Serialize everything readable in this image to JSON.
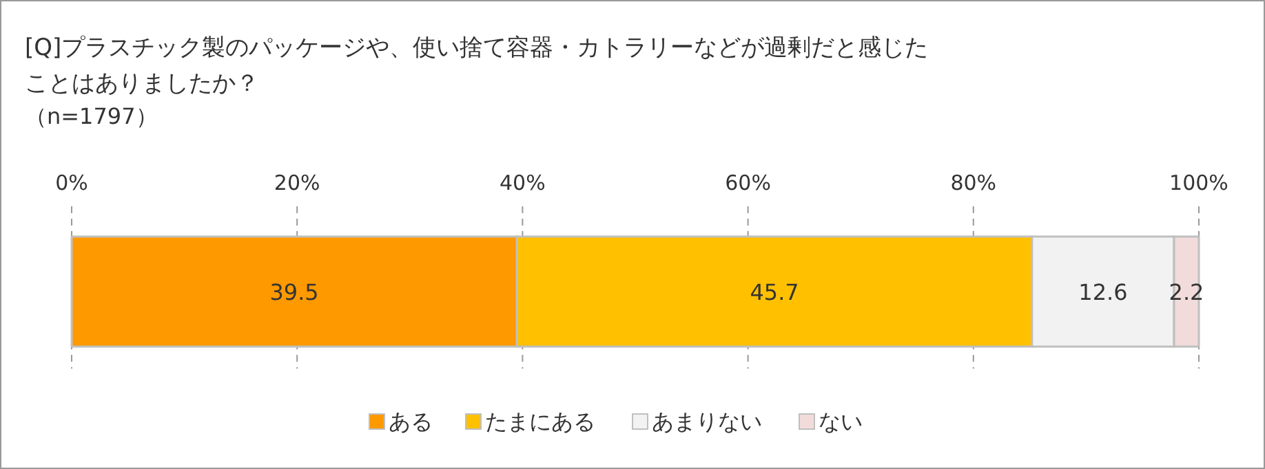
{
  "chart_data": {
    "type": "bar",
    "orientation": "horizontal",
    "stacked": true,
    "title": "[Q]プラスチック製のパッケージや、使い捨て容器・カトラリーなどが過剰だと感じたことはありましたか？",
    "subtitle": "（n=1797）",
    "categories": [
      null
    ],
    "xlim": [
      0,
      100
    ],
    "xticks": [
      {
        "value": 0,
        "label": "0%"
      },
      {
        "value": 20,
        "label": "20%"
      },
      {
        "value": 40,
        "label": "40%"
      },
      {
        "value": 60,
        "label": "60%"
      },
      {
        "value": 80,
        "label": "80%"
      },
      {
        "value": 100,
        "label": "100%"
      }
    ],
    "series": [
      {
        "name": "ある",
        "color": "#ff9900",
        "values": [
          39.5
        ]
      },
      {
        "name": "たまにある",
        "color": "#ffc000",
        "values": [
          45.7
        ]
      },
      {
        "name": "あまりない",
        "color": "#f2f2f2",
        "values": [
          12.6
        ]
      },
      {
        "name": "ない",
        "color": "#f2dcdb",
        "values": [
          2.2
        ]
      }
    ],
    "data_labels": true,
    "grid": "x",
    "legend": "bottom"
  }
}
